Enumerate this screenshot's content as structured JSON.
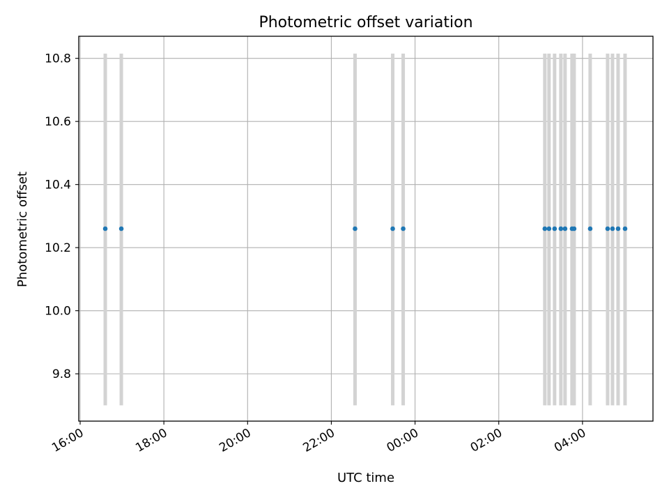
{
  "chart_data": {
    "type": "scatter",
    "title": "Photometric offset variation",
    "xlabel": "UTC time",
    "ylabel": "Photometric offset",
    "x_tick_labels": [
      "16:00",
      "18:00",
      "20:00",
      "22:00",
      "00:00",
      "02:00",
      "04:00"
    ],
    "y_tick_labels": [
      "9.8",
      "10.0",
      "10.2",
      "10.4",
      "10.6",
      "10.8"
    ],
    "x_ticks": [
      "16:00",
      "18:00",
      "20:00",
      "22:00",
      "24:00",
      "26:00",
      "28:00"
    ],
    "y_ticks": [
      9.8,
      10.0,
      10.2,
      10.4,
      10.6,
      10.8
    ],
    "xlim": [
      "15:58",
      "29:41"
    ],
    "ylim": [
      9.65,
      10.87
    ],
    "grid": true,
    "error_bars": {
      "low": 9.7,
      "high": 10.815,
      "color": "#d3d3d3"
    },
    "series": [
      {
        "color": "#1f77b4",
        "x": [
          "16:36",
          "16:59",
          "22:34",
          "23:28",
          "23:43",
          "27:06",
          "27:12",
          "27:20",
          "27:29",
          "27:35",
          "27:45",
          "27:48",
          "28:11",
          "28:36",
          "28:43",
          "28:51",
          "29:01"
        ],
        "y": [
          10.26,
          10.26,
          10.26,
          10.26,
          10.26,
          10.26,
          10.26,
          10.26,
          10.26,
          10.26,
          10.26,
          10.26,
          10.26,
          10.26,
          10.26,
          10.26,
          10.26
        ]
      }
    ]
  }
}
